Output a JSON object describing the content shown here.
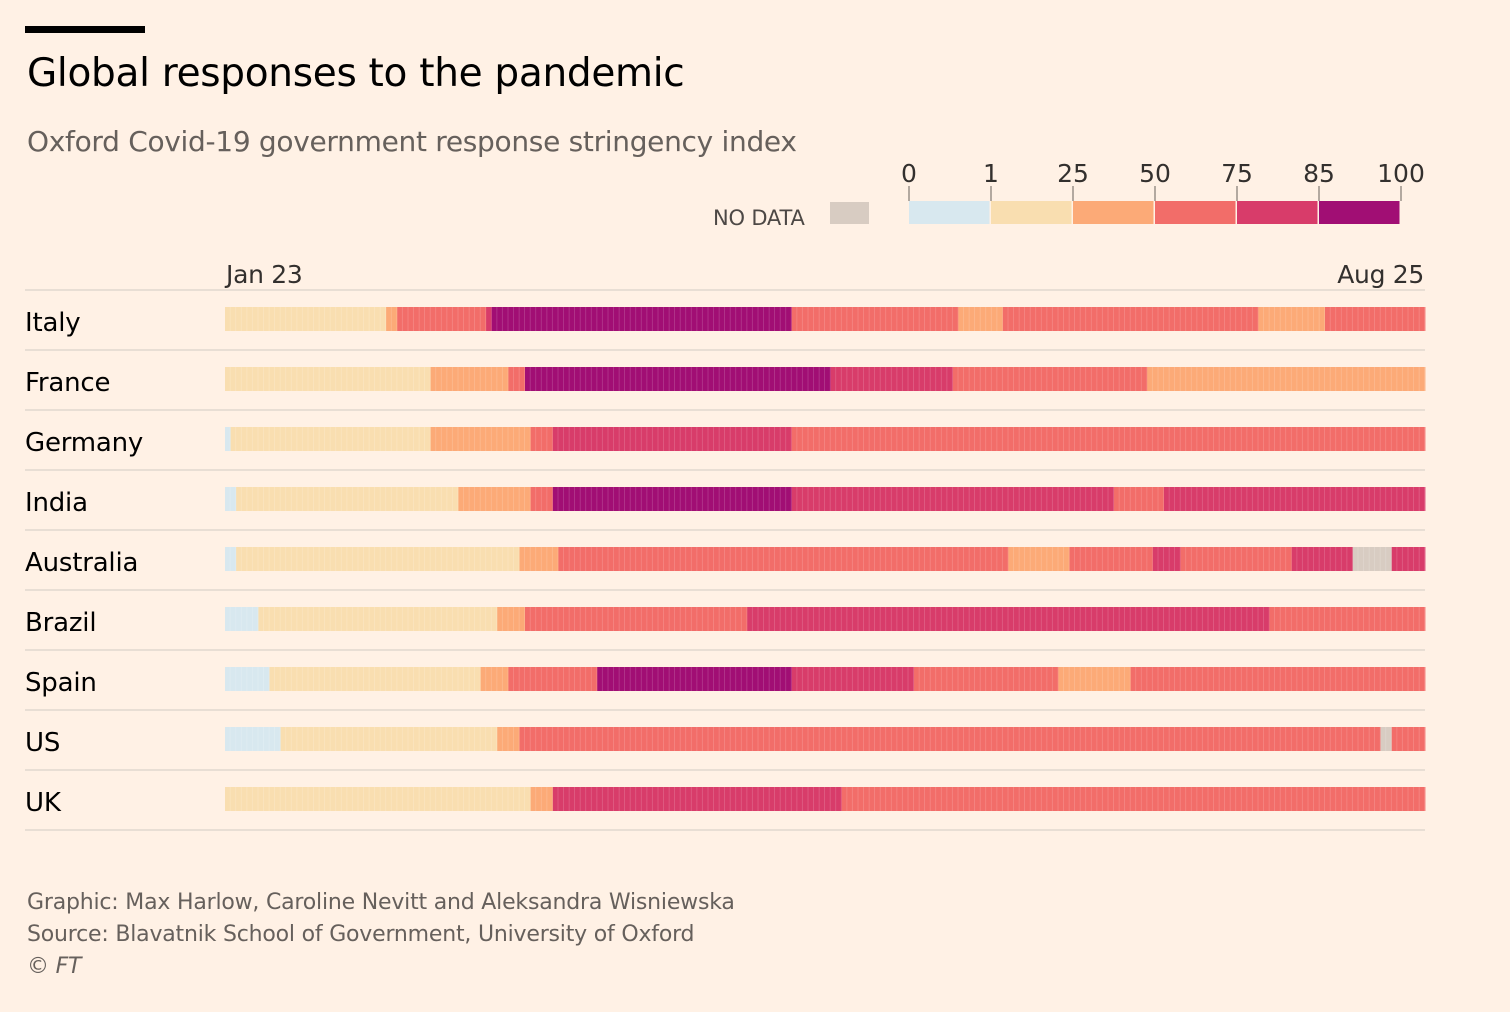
{
  "title": "Global responses to the pandemic",
  "subtitle": "Oxford Covid-19 government response stringency index",
  "legend": {
    "no_data_label": "NO DATA",
    "no_data_color": "#d8ccc2",
    "thresholds": [
      "0",
      "1",
      "25",
      "50",
      "75",
      "85",
      "100"
    ],
    "colors": [
      "#d8e8ef",
      "#f9deb0",
      "#fcaa77",
      "#f26d69",
      "#d83c6a",
      "#a10e74"
    ]
  },
  "dates": {
    "start": "Jan 23",
    "end": "Aug 25"
  },
  "footer": {
    "graphic": "Graphic: Max Harlow, Caroline Nevitt and Aleksandra Wisniewska",
    "source": "Source: Blavatnik School of Government, University of Oxford",
    "copyright": "© FT"
  },
  "chart_data": {
    "type": "heatmap",
    "title": "Global responses to the pandemic",
    "subtitle": "Oxford Covid-19 government response stringency index",
    "x_range": [
      "Jan 23",
      "Aug 25"
    ],
    "total_days": 216,
    "bands": [
      {
        "label": "0",
        "range": [
          0,
          1
        ],
        "color": "#d8e8ef"
      },
      {
        "label": "1",
        "range": [
          1,
          25
        ],
        "color": "#f9deb0"
      },
      {
        "label": "25",
        "range": [
          25,
          50
        ],
        "color": "#fcaa77"
      },
      {
        "label": "50",
        "range": [
          50,
          75
        ],
        "color": "#f26d69"
      },
      {
        "label": "75",
        "range": [
          75,
          85
        ],
        "color": "#d83c6a"
      },
      {
        "label": "85",
        "range": [
          85,
          100
        ],
        "color": "#a10e74"
      },
      {
        "label": "NO DATA",
        "range": null,
        "color": "#d8ccc2"
      }
    ],
    "countries": [
      {
        "name": "Italy",
        "segments": [
          {
            "band": "1",
            "days": 29
          },
          {
            "band": "25",
            "days": 2
          },
          {
            "band": "50",
            "days": 16
          },
          {
            "band": "75",
            "days": 1
          },
          {
            "band": "85",
            "days": 54
          },
          {
            "band": "50",
            "days": 30
          },
          {
            "band": "25",
            "days": 8
          },
          {
            "band": "50",
            "days": 46
          },
          {
            "band": "25",
            "days": 12
          },
          {
            "band": "50",
            "days": 18
          }
        ]
      },
      {
        "name": "France",
        "segments": [
          {
            "band": "1",
            "days": 37
          },
          {
            "band": "25",
            "days": 14
          },
          {
            "band": "50",
            "days": 3
          },
          {
            "band": "85",
            "days": 55
          },
          {
            "band": "75",
            "days": 22
          },
          {
            "band": "50",
            "days": 35
          },
          {
            "band": "25",
            "days": 50
          }
        ]
      },
      {
        "name": "Germany",
        "segments": [
          {
            "band": "0",
            "days": 1
          },
          {
            "band": "1",
            "days": 36
          },
          {
            "band": "25",
            "days": 18
          },
          {
            "band": "50",
            "days": 4
          },
          {
            "band": "75",
            "days": 43
          },
          {
            "band": "50",
            "days": 114
          }
        ]
      },
      {
        "name": "India",
        "segments": [
          {
            "band": "0",
            "days": 2
          },
          {
            "band": "1",
            "days": 40
          },
          {
            "band": "25",
            "days": 13
          },
          {
            "band": "50",
            "days": 4
          },
          {
            "band": "85",
            "days": 43
          },
          {
            "band": "75",
            "days": 58
          },
          {
            "band": "50",
            "days": 9
          },
          {
            "band": "75",
            "days": 47
          }
        ]
      },
      {
        "name": "Australia",
        "segments": [
          {
            "band": "0",
            "days": 2
          },
          {
            "band": "1",
            "days": 51
          },
          {
            "band": "25",
            "days": 7
          },
          {
            "band": "50",
            "days": 81
          },
          {
            "band": "25",
            "days": 11
          },
          {
            "band": "50",
            "days": 15
          },
          {
            "band": "75",
            "days": 5
          },
          {
            "band": "50",
            "days": 20
          },
          {
            "band": "75",
            "days": 11
          },
          {
            "band": "NO DATA",
            "days": 7
          },
          {
            "band": "75",
            "days": 6
          }
        ]
      },
      {
        "name": "Brazil",
        "segments": [
          {
            "band": "0",
            "days": 6
          },
          {
            "band": "1",
            "days": 43
          },
          {
            "band": "25",
            "days": 5
          },
          {
            "band": "50",
            "days": 40
          },
          {
            "band": "75",
            "days": 94
          },
          {
            "band": "50",
            "days": 28
          }
        ]
      },
      {
        "name": "Spain",
        "segments": [
          {
            "band": "0",
            "days": 8
          },
          {
            "band": "1",
            "days": 38
          },
          {
            "band": "25",
            "days": 5
          },
          {
            "band": "50",
            "days": 16
          },
          {
            "band": "85",
            "days": 35
          },
          {
            "band": "75",
            "days": 22
          },
          {
            "band": "50",
            "days": 26
          },
          {
            "band": "25",
            "days": 13
          },
          {
            "band": "50",
            "days": 53
          }
        ]
      },
      {
        "name": "US",
        "segments": [
          {
            "band": "0",
            "days": 10
          },
          {
            "band": "1",
            "days": 39
          },
          {
            "band": "25",
            "days": 4
          },
          {
            "band": "50",
            "days": 155
          },
          {
            "band": "NO DATA",
            "days": 2
          },
          {
            "band": "50",
            "days": 6
          }
        ]
      },
      {
        "name": "UK",
        "segments": [
          {
            "band": "1",
            "days": 55
          },
          {
            "band": "25",
            "days": 4
          },
          {
            "band": "75",
            "days": 52
          },
          {
            "band": "50",
            "days": 105
          }
        ]
      }
    ]
  }
}
